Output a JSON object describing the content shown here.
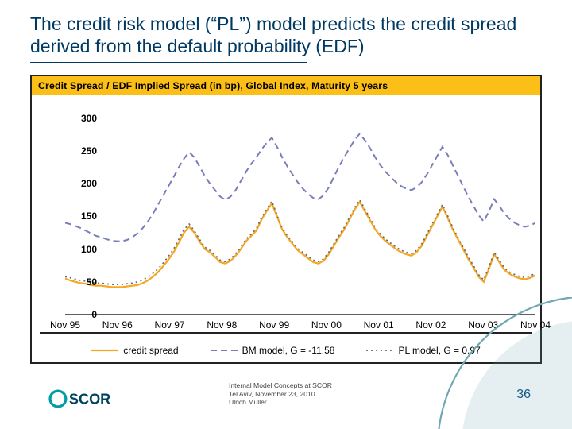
{
  "title": "The credit risk model (“PL”) model predicts the credit spread derived from the default probability (EDF)",
  "chart": {
    "banner": "Credit Spread /  EDF Implied Spread (in bp), Global Index, Maturity 5 years",
    "type": "line",
    "ylim": [
      0,
      320
    ],
    "ytick_step": 50,
    "yticks": [
      0,
      50,
      100,
      150,
      200,
      250,
      300
    ],
    "xlabels": [
      "Nov 95",
      "Nov 96",
      "Nov 97",
      "Nov 98",
      "Nov 99",
      "Nov 00",
      "Nov 01",
      "Nov 02",
      "Nov 03",
      "Nov 04"
    ],
    "xdomain": [
      0,
      9
    ],
    "ylabel_fontsize": 12,
    "xlabel_fontsize": 12,
    "background_color": "#ffffff",
    "banner_bg": "#fbbf18",
    "banner_text_color": "#000000",
    "axis_color": "#000000",
    "series": {
      "credit_spread": {
        "label": "credit spread",
        "color": "#f5a623",
        "width": 2.2,
        "dash": "none",
        "y": [
          55,
          52,
          50,
          48,
          47,
          45,
          44,
          44,
          43,
          42,
          42,
          42,
          43,
          44,
          45,
          48,
          52,
          58,
          65,
          74,
          84,
          95,
          110,
          125,
          134,
          125,
          112,
          100,
          95,
          88,
          80,
          78,
          82,
          90,
          100,
          112,
          120,
          128,
          145,
          158,
          170,
          150,
          130,
          118,
          108,
          98,
          92,
          86,
          80,
          78,
          82,
          92,
          105,
          118,
          130,
          145,
          160,
          172,
          158,
          144,
          130,
          120,
          112,
          106,
          100,
          95,
          92,
          90,
          95,
          105,
          120,
          135,
          150,
          165,
          148,
          130,
          115,
          100,
          85,
          72,
          58,
          50,
          70,
          92,
          80,
          68,
          62,
          58,
          55,
          54,
          56,
          60
        ]
      },
      "bm_model": {
        "label": "BM model, G = -11.58",
        "color": "#7a7dbb",
        "width": 2,
        "dash": "8 5",
        "y": [
          140,
          138,
          135,
          132,
          128,
          124,
          120,
          118,
          115,
          113,
          112,
          112,
          114,
          118,
          124,
          132,
          142,
          154,
          168,
          182,
          196,
          210,
          225,
          238,
          248,
          240,
          226,
          212,
          200,
          190,
          180,
          175,
          180,
          190,
          204,
          218,
          230,
          240,
          252,
          262,
          270,
          256,
          240,
          226,
          214,
          202,
          192,
          184,
          178,
          176,
          182,
          194,
          210,
          226,
          240,
          254,
          266,
          276,
          266,
          254,
          240,
          228,
          218,
          210,
          202,
          196,
          192,
          190,
          194,
          202,
          214,
          228,
          242,
          256,
          244,
          228,
          212,
          196,
          180,
          166,
          152,
          142,
          158,
          176,
          166,
          154,
          146,
          140,
          136,
          134,
          136,
          140
        ]
      },
      "pl_model": {
        "label": "PL model, G = 0.97",
        "color": "#6a6a6a",
        "width": 1.7,
        "dash": "2 4",
        "y": [
          58,
          56,
          54,
          52,
          51,
          49,
          48,
          48,
          47,
          46,
          46,
          46,
          47,
          48,
          50,
          53,
          57,
          63,
          70,
          79,
          89,
          100,
          115,
          130,
          138,
          128,
          115,
          103,
          98,
          91,
          83,
          81,
          85,
          93,
          103,
          115,
          123,
          131,
          148,
          161,
          173,
          152,
          132,
          120,
          111,
          101,
          95,
          89,
          83,
          81,
          85,
          95,
          108,
          121,
          133,
          148,
          163,
          175,
          161,
          147,
          133,
          123,
          115,
          109,
          103,
          98,
          95,
          93,
          98,
          108,
          123,
          138,
          153,
          168,
          151,
          133,
          118,
          103,
          88,
          75,
          61,
          53,
          73,
          95,
          83,
          71,
          65,
          61,
          58,
          57,
          59,
          63
        ]
      }
    },
    "legend_order": [
      "credit_spread",
      "bm_model",
      "pl_model"
    ]
  },
  "footer": {
    "line1": "Internal Model Concepts at SCOR",
    "line2": "Tel Aviv, November 23, 2010",
    "line3": "Ulrich Müller"
  },
  "page_number": "36",
  "logo": {
    "text": "SCOR",
    "circle_color": "#009da5",
    "text_color": "#00415f"
  },
  "decor": {
    "arc_color": "#6fa8b3"
  },
  "title_color": "#003a63"
}
